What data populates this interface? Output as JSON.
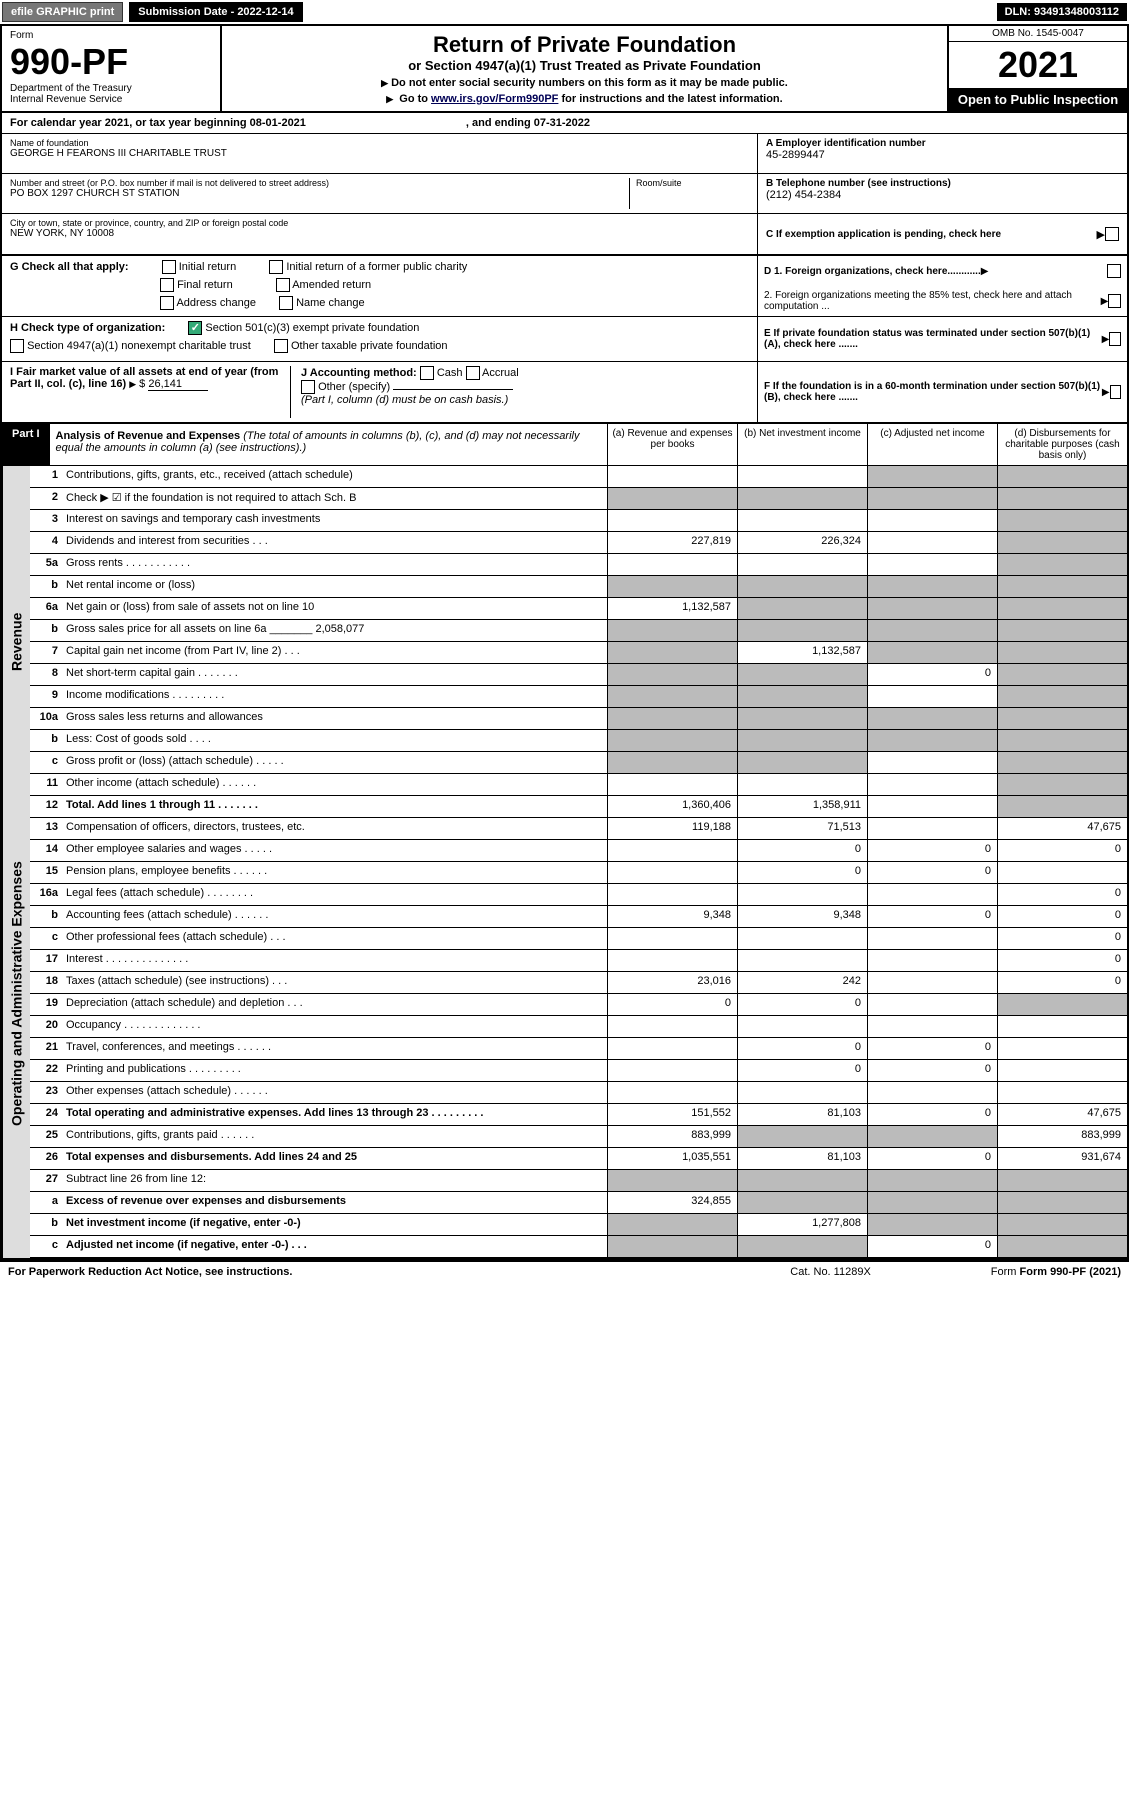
{
  "topbar": {
    "efile": "efile GRAPHIC print",
    "submission_label": "Submission Date - 2022-12-14",
    "dln": "DLN: 93491348003112"
  },
  "header": {
    "form_label": "Form",
    "form_number": "990-PF",
    "dept": "Department of the Treasury",
    "irs": "Internal Revenue Service",
    "title": "Return of Private Foundation",
    "subtitle": "or Section 4947(a)(1) Trust Treated as Private Foundation",
    "instr1": "Do not enter social security numbers on this form as it may be made public.",
    "instr2_pre": "Go to ",
    "instr2_link": "www.irs.gov/Form990PF",
    "instr2_post": " for instructions and the latest information.",
    "omb": "OMB No. 1545-0047",
    "year": "2021",
    "inspection": "Open to Public Inspection"
  },
  "calyear": {
    "text": "For calendar year 2021, or tax year beginning 08-01-2021",
    "ending": ", and ending 07-31-2022"
  },
  "info": {
    "name_label": "Name of foundation",
    "name": "GEORGE H FEARONS III CHARITABLE TRUST",
    "addr_label": "Number and street (or P.O. box number if mail is not delivered to street address)",
    "addr": "PO BOX 1297 CHURCH ST STATION",
    "room_label": "Room/suite",
    "city_label": "City or town, state or province, country, and ZIP or foreign postal code",
    "city": "NEW YORK, NY  10008",
    "ein_label": "A Employer identification number",
    "ein": "45-2899447",
    "phone_label": "B Telephone number (see instructions)",
    "phone": "(212) 454-2384",
    "c_label": "C If exemption application is pending, check here",
    "d1": "D 1. Foreign organizations, check here............",
    "d2": "2. Foreign organizations meeting the 85% test, check here and attach computation ...",
    "e_label": "E  If private foundation status was terminated under section 507(b)(1)(A), check here .......",
    "f_label": "F  If the foundation is in a 60-month termination under section 507(b)(1)(B), check here .......",
    "g_label": "G Check all that apply:",
    "g_opts": [
      "Initial return",
      "Initial return of a former public charity",
      "Final return",
      "Amended return",
      "Address change",
      "Name change"
    ],
    "h_label": "H Check type of organization:",
    "h_opt1": "Section 501(c)(3) exempt private foundation",
    "h_opt2": "Section 4947(a)(1) nonexempt charitable trust",
    "h_opt3": "Other taxable private foundation",
    "i_label": "I Fair market value of all assets at end of year (from Part II, col. (c), line 16)",
    "i_val": "26,141",
    "j_label": "J Accounting method:",
    "j_cash": "Cash",
    "j_accrual": "Accrual",
    "j_other": "Other (specify)",
    "j_note": "(Part I, column (d) must be on cash basis.)"
  },
  "part1": {
    "label": "Part I",
    "title": "Analysis of Revenue and Expenses",
    "note": "(The total of amounts in columns (b), (c), and (d) may not necessarily equal the amounts in column (a) (see instructions).)",
    "col_a": "(a) Revenue and expenses per books",
    "col_b": "(b) Net investment income",
    "col_c": "(c) Adjusted net income",
    "col_d": "(d) Disbursements for charitable purposes (cash basis only)"
  },
  "sections": {
    "revenue": "Revenue",
    "expenses": "Operating and Administrative Expenses"
  },
  "rows": [
    {
      "n": "1",
      "d": "Contributions, gifts, grants, etc., received (attach schedule)",
      "a": "",
      "b": "",
      "c": "g",
      "dd": "g"
    },
    {
      "n": "2",
      "d": "Check ▶ ☑ if the foundation is not required to attach Sch. B",
      "a": "g",
      "b": "g",
      "c": "g",
      "dd": "g",
      "dots": true
    },
    {
      "n": "3",
      "d": "Interest on savings and temporary cash investments",
      "a": "",
      "b": "",
      "c": "",
      "dd": "g"
    },
    {
      "n": "4",
      "d": "Dividends and interest from securities   .   .   .",
      "a": "227,819",
      "b": "226,324",
      "c": "",
      "dd": "g"
    },
    {
      "n": "5a",
      "d": "Gross rents   .   .   .   .   .   .   .   .   .   .   .",
      "a": "",
      "b": "",
      "c": "",
      "dd": "g"
    },
    {
      "n": "b",
      "d": "Net rental income or (loss)",
      "a": "g",
      "b": "g",
      "c": "g",
      "dd": "g"
    },
    {
      "n": "6a",
      "d": "Net gain or (loss) from sale of assets not on line 10",
      "a": "1,132,587",
      "b": "g",
      "c": "g",
      "dd": "g"
    },
    {
      "n": "b",
      "d": "Gross sales price for all assets on line 6a _______ 2,058,077",
      "a": "g",
      "b": "g",
      "c": "g",
      "dd": "g"
    },
    {
      "n": "7",
      "d": "Capital gain net income (from Part IV, line 2)   .   .   .",
      "a": "g",
      "b": "1,132,587",
      "c": "g",
      "dd": "g"
    },
    {
      "n": "8",
      "d": "Net short-term capital gain   .   .   .   .   .   .   .",
      "a": "g",
      "b": "g",
      "c": "0",
      "dd": "g"
    },
    {
      "n": "9",
      "d": "Income modifications   .   .   .   .   .   .   .   .   .",
      "a": "g",
      "b": "g",
      "c": "",
      "dd": "g"
    },
    {
      "n": "10a",
      "d": "Gross sales less returns and allowances",
      "a": "g",
      "b": "g",
      "c": "g",
      "dd": "g"
    },
    {
      "n": "b",
      "d": "Less: Cost of goods sold   .   .   .   .",
      "a": "g",
      "b": "g",
      "c": "g",
      "dd": "g"
    },
    {
      "n": "c",
      "d": "Gross profit or (loss) (attach schedule)   .   .   .   .   .",
      "a": "g",
      "b": "g",
      "c": "",
      "dd": "g"
    },
    {
      "n": "11",
      "d": "Other income (attach schedule)   .   .   .   .   .   .",
      "a": "",
      "b": "",
      "c": "",
      "dd": "g"
    },
    {
      "n": "12",
      "d": "Total. Add lines 1 through 11   .   .   .   .   .   .   .",
      "a": "1,360,406",
      "b": "1,358,911",
      "c": "",
      "dd": "g",
      "bold": true
    }
  ],
  "exp_rows": [
    {
      "n": "13",
      "d": "Compensation of officers, directors, trustees, etc.",
      "a": "119,188",
      "b": "71,513",
      "c": "",
      "dd": "47,675"
    },
    {
      "n": "14",
      "d": "Other employee salaries and wages   .   .   .   .   .",
      "a": "",
      "b": "0",
      "c": "0",
      "dd": "0"
    },
    {
      "n": "15",
      "d": "Pension plans, employee benefits   .   .   .   .   .   .",
      "a": "",
      "b": "0",
      "c": "0",
      "dd": ""
    },
    {
      "n": "16a",
      "d": "Legal fees (attach schedule)   .   .   .   .   .   .   .   .",
      "a": "",
      "b": "",
      "c": "",
      "dd": "0"
    },
    {
      "n": "b",
      "d": "Accounting fees (attach schedule)   .   .   .   .   .   .",
      "a": "9,348",
      "b": "9,348",
      "c": "0",
      "dd": "0"
    },
    {
      "n": "c",
      "d": "Other professional fees (attach schedule)   .   .   .",
      "a": "",
      "b": "",
      "c": "",
      "dd": "0"
    },
    {
      "n": "17",
      "d": "Interest   .   .   .   .   .   .   .   .   .   .   .   .   .   .",
      "a": "",
      "b": "",
      "c": "",
      "dd": "0"
    },
    {
      "n": "18",
      "d": "Taxes (attach schedule) (see instructions)   .   .   .",
      "a": "23,016",
      "b": "242",
      "c": "",
      "dd": "0"
    },
    {
      "n": "19",
      "d": "Depreciation (attach schedule) and depletion   .   .   .",
      "a": "0",
      "b": "0",
      "c": "",
      "dd": "g"
    },
    {
      "n": "20",
      "d": "Occupancy   .   .   .   .   .   .   .   .   .   .   .   .   .",
      "a": "",
      "b": "",
      "c": "",
      "dd": ""
    },
    {
      "n": "21",
      "d": "Travel, conferences, and meetings   .   .   .   .   .   .",
      "a": "",
      "b": "0",
      "c": "0",
      "dd": ""
    },
    {
      "n": "22",
      "d": "Printing and publications   .   .   .   .   .   .   .   .   .",
      "a": "",
      "b": "0",
      "c": "0",
      "dd": ""
    },
    {
      "n": "23",
      "d": "Other expenses (attach schedule)   .   .   .   .   .   .",
      "a": "",
      "b": "",
      "c": "",
      "dd": ""
    },
    {
      "n": "24",
      "d": "Total operating and administrative expenses. Add lines 13 through 23   .   .   .   .   .   .   .   .   .",
      "a": "151,552",
      "b": "81,103",
      "c": "0",
      "dd": "47,675",
      "bold": true
    },
    {
      "n": "25",
      "d": "Contributions, gifts, grants paid   .   .   .   .   .   .",
      "a": "883,999",
      "b": "g",
      "c": "g",
      "dd": "883,999"
    },
    {
      "n": "26",
      "d": "Total expenses and disbursements. Add lines 24 and 25",
      "a": "1,035,551",
      "b": "81,103",
      "c": "0",
      "dd": "931,674",
      "bold": true
    }
  ],
  "final_rows": [
    {
      "n": "27",
      "d": "Subtract line 26 from line 12:",
      "a": "g",
      "b": "g",
      "c": "g",
      "dd": "g"
    },
    {
      "n": "a",
      "d": "Excess of revenue over expenses and disbursements",
      "a": "324,855",
      "b": "g",
      "c": "g",
      "dd": "g",
      "bold": true
    },
    {
      "n": "b",
      "d": "Net investment income (if negative, enter -0-)",
      "a": "g",
      "b": "1,277,808",
      "c": "g",
      "dd": "g",
      "bold": true
    },
    {
      "n": "c",
      "d": "Adjusted net income (if negative, enter -0-)   .   .   .",
      "a": "g",
      "b": "g",
      "c": "0",
      "dd": "g",
      "bold": true
    }
  ],
  "footer": {
    "left": "For Paperwork Reduction Act Notice, see instructions.",
    "center": "Cat. No. 11289X",
    "right": "Form 990-PF (2021)"
  },
  "colors": {
    "grey_cell": "#bbbbbb",
    "header_bg": "#000000",
    "check_green": "#33aa77"
  }
}
